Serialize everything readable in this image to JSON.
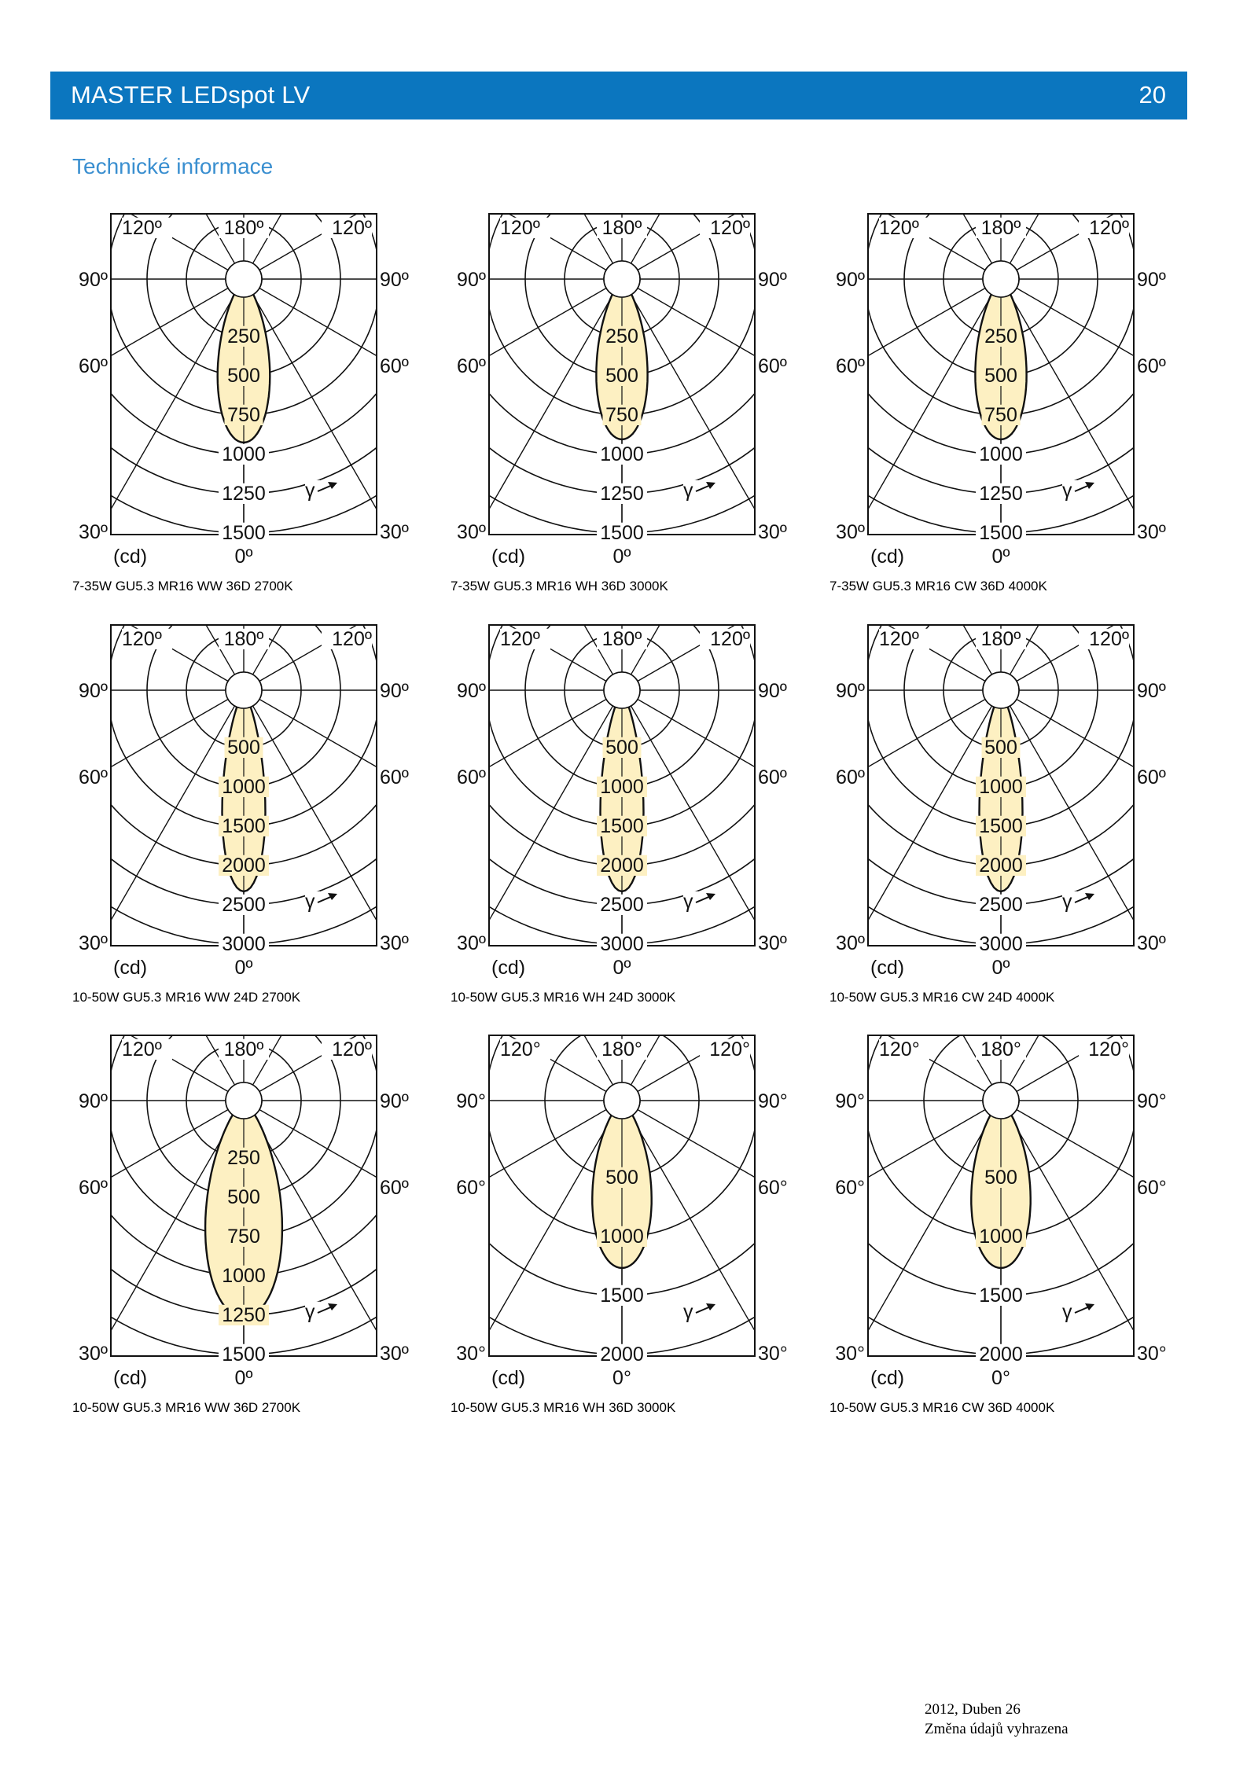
{
  "header": {
    "title": "MASTER LEDspot LV",
    "page_number": "20"
  },
  "section_title": "Technické informace",
  "diagram_labels": {
    "top_left": "120º",
    "top_center": "180º",
    "top_right": "120º",
    "left_upper": "90º",
    "right_upper": "90º",
    "left_middle": "60º",
    "right_middle": "60º",
    "left_lower": "30º",
    "right_lower": "30º",
    "bottom_center": "0º",
    "unit": "(cd)",
    "gamma": "γ"
  },
  "diagram_labels_alt": {
    "top_left": "120°",
    "top_center": "180°",
    "top_right": "120°",
    "left_upper": "90°",
    "right_upper": "90°",
    "left_middle": "60°",
    "right_middle": "60°",
    "left_lower": "30°",
    "right_lower": "30°",
    "bottom_center": "0°",
    "unit": "(cd)",
    "gamma": "γ"
  },
  "colors": {
    "header_bg": "#0b76bf",
    "section_title": "#3a8fd0",
    "beam_fill": "#fdf0c2",
    "line": "#111111"
  },
  "diagrams": [
    {
      "caption": "7-35W GU5.3 MR16 WW 36D 2700K",
      "rings": [
        "250",
        "500",
        "750",
        "1000",
        "1250",
        "1500"
      ],
      "ring_max": 1500,
      "peak_cd": 1040,
      "beam_half_angle_deg": 18,
      "label_style": "standard"
    },
    {
      "caption": "7-35W GU5.3 MR16 WH 36D 3000K",
      "rings": [
        "250",
        "500",
        "750",
        "1000",
        "1250",
        "1500"
      ],
      "ring_max": 1500,
      "peak_cd": 1020,
      "beam_half_angle_deg": 18,
      "label_style": "standard"
    },
    {
      "caption": "7-35W GU5.3 MR16 CW 36D 4000K",
      "rings": [
        "250",
        "500",
        "750",
        "1000",
        "1250",
        "1500"
      ],
      "ring_max": 1500,
      "peak_cd": 1020,
      "beam_half_angle_deg": 18,
      "label_style": "standard"
    },
    {
      "caption": "10-50W GU5.3 MR16 WW 24D 2700K",
      "rings": [
        "500",
        "1000",
        "1500",
        "2000",
        "2500",
        "3000"
      ],
      "ring_max": 3000,
      "peak_cd": 2560,
      "beam_half_angle_deg": 12,
      "label_style": "standard"
    },
    {
      "caption": "10-50W GU5.3 MR16 WH 24D 3000K",
      "rings": [
        "500",
        "1000",
        "1500",
        "2000",
        "2500",
        "3000"
      ],
      "ring_max": 3000,
      "peak_cd": 2560,
      "beam_half_angle_deg": 12,
      "label_style": "standard"
    },
    {
      "caption": "10-50W GU5.3 MR16 CW 24D 4000K",
      "rings": [
        "500",
        "1000",
        "1500",
        "2000",
        "2500",
        "3000"
      ],
      "ring_max": 3000,
      "peak_cd": 2560,
      "beam_half_angle_deg": 12,
      "label_style": "standard"
    },
    {
      "caption": "10-50W GU5.3 MR16 WW 36D 2700K",
      "rings": [
        "250",
        "500",
        "750",
        "1000",
        "1250",
        "1500"
      ],
      "ring_max": 1500,
      "peak_cd": 1380,
      "beam_half_angle_deg": 20,
      "label_style": "standard"
    },
    {
      "caption": "10-50W GU5.3 MR16 WH 36D 3000K",
      "rings": [
        "500",
        "1000",
        "1500",
        "2000"
      ],
      "ring_max": 2000,
      "peak_cd": 1420,
      "beam_half_angle_deg": 20,
      "label_style": "alt"
    },
    {
      "caption": "10-50W GU5.3 MR16 CW 36D 4000K",
      "rings": [
        "500",
        "1000",
        "1500",
        "2000"
      ],
      "ring_max": 2000,
      "peak_cd": 1420,
      "beam_half_angle_deg": 20,
      "label_style": "alt"
    }
  ],
  "footer": {
    "line1": "2012, Duben 26",
    "line2": "Změna údajů vyhrazena"
  }
}
